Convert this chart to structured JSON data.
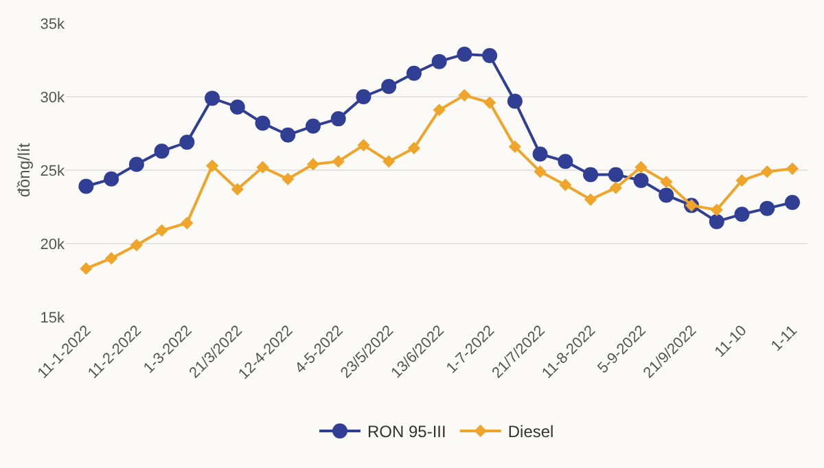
{
  "chart_data": {
    "type": "line",
    "ylabel": "đồng/lít",
    "categories": [
      "11-1-2022",
      null,
      "11-2-2022",
      null,
      "1-3-2022",
      null,
      "21/3/2022",
      null,
      "12-4-2022",
      null,
      "4-5-2022",
      null,
      "23/5/2022",
      null,
      "13/6/2022",
      null,
      "1-7-2022",
      null,
      "21/7/2022",
      null,
      "11-8-2022",
      null,
      "5-9-2022",
      null,
      "21/9/2022",
      null,
      "11-10",
      null,
      "1-11"
    ],
    "series": [
      {
        "name": "RON 95-III",
        "color": "#303f94",
        "marker": "circle",
        "values": [
          23.9,
          24.4,
          25.4,
          26.3,
          26.9,
          29.9,
          29.3,
          28.2,
          27.4,
          28.0,
          28.5,
          30.0,
          30.7,
          31.6,
          32.4,
          32.9,
          32.8,
          29.7,
          26.1,
          25.6,
          24.7,
          24.7,
          24.3,
          23.3,
          22.6,
          21.5,
          22.0,
          22.4,
          22.8
        ]
      },
      {
        "name": "Diesel",
        "color": "#eea52a",
        "marker": "diamond",
        "values": [
          18.3,
          19.0,
          19.9,
          20.9,
          21.4,
          25.3,
          23.7,
          25.2,
          24.4,
          25.4,
          25.6,
          26.7,
          25.6,
          26.5,
          29.1,
          30.1,
          29.6,
          26.6,
          24.9,
          24.0,
          23.0,
          23.8,
          25.2,
          24.2,
          22.6,
          22.3,
          24.3,
          24.9,
          25.1
        ]
      }
    ],
    "ylim": [
      15,
      35
    ],
    "yticks": [
      {
        "value": 15,
        "label": "15k"
      },
      {
        "value": 20,
        "label": "20k"
      },
      {
        "value": 25,
        "label": "25k"
      },
      {
        "value": 30,
        "label": "30k"
      },
      {
        "value": 35,
        "label": "35k"
      }
    ],
    "grid": "y",
    "legend": "bottom",
    "line_style": "solid"
  }
}
